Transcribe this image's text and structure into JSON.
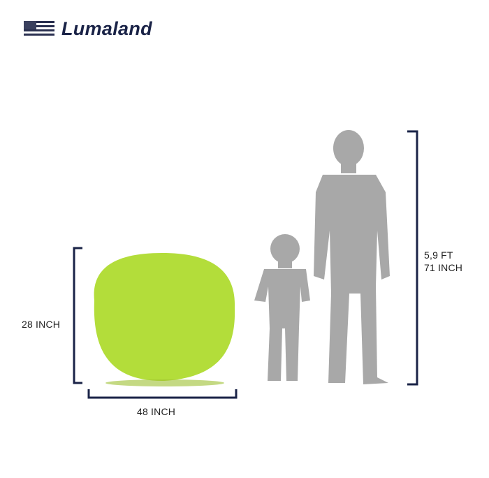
{
  "brand": {
    "name": "Lumaland",
    "flag_icon": "us-flag-icon"
  },
  "dimensions": {
    "height_label": "28 INCH",
    "width_label": "48 INCH",
    "person_height_ft": "5,9 FT",
    "person_height_inch": "71 INCH"
  },
  "colors": {
    "bracket": "#1a2347",
    "beanbag": "#b3dd3a",
    "silhouette": "#a8a8a8"
  }
}
